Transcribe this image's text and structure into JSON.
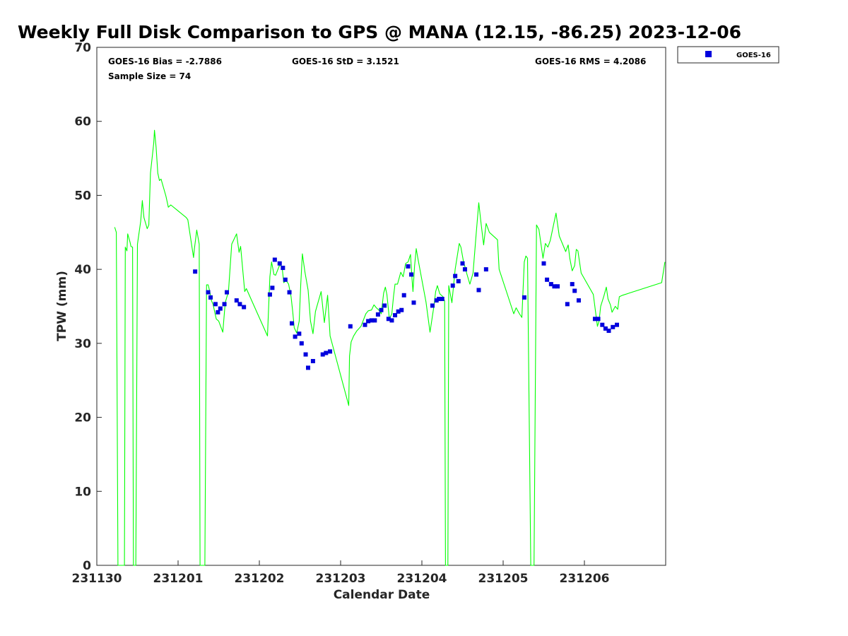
{
  "chart_data": {
    "type": "line+scatter",
    "title": "Weekly Full Disk Comparison to GPS @ MANA (12.15, -86.25) 2023-12-06",
    "xlabel": "Calendar Date",
    "ylabel": "TPW (mm)",
    "xlim": [
      0,
      7
    ],
    "ylim": [
      0,
      70
    ],
    "xticks": [
      {
        "value": 0,
        "label": "231130"
      },
      {
        "value": 1,
        "label": "231201"
      },
      {
        "value": 2,
        "label": "231202"
      },
      {
        "value": 3,
        "label": "231203"
      },
      {
        "value": 4,
        "label": "231204"
      },
      {
        "value": 5,
        "label": "231205"
      },
      {
        "value": 6,
        "label": "231206"
      }
    ],
    "yticks": [
      {
        "value": 0,
        "label": "0"
      },
      {
        "value": 10,
        "label": "10"
      },
      {
        "value": 20,
        "label": "20"
      },
      {
        "value": 30,
        "label": "30"
      },
      {
        "value": 40,
        "label": "40"
      },
      {
        "value": 50,
        "label": "50"
      },
      {
        "value": 60,
        "label": "60"
      },
      {
        "value": 70,
        "label": "70"
      }
    ],
    "stats": {
      "bias": "GOES-16 Bias = -2.7886",
      "std": "GOES-16 StD = 3.1521",
      "rms": "GOES-16 RMS = 4.2086",
      "sample": "Sample Size = 74"
    },
    "legend": {
      "position": "top-right",
      "entries": [
        {
          "name": "GOES-16",
          "color": "#0000dd",
          "marker": "square"
        }
      ]
    },
    "gps_series": {
      "name": "GPS",
      "color": "#00ff00",
      "points": [
        [
          0.22,
          45.7
        ],
        [
          0.24,
          45.0
        ],
        [
          0.26,
          0
        ],
        [
          0.34,
          0
        ],
        [
          0.35,
          43.0
        ],
        [
          0.37,
          42.5
        ],
        [
          0.38,
          44.8
        ],
        [
          0.41,
          43.6
        ],
        [
          0.42,
          43.1
        ],
        [
          0.44,
          43.0
        ],
        [
          0.45,
          0
        ],
        [
          0.48,
          0
        ],
        [
          0.5,
          43.4
        ],
        [
          0.54,
          46.5
        ],
        [
          0.56,
          49.3
        ],
        [
          0.58,
          47.0
        ],
        [
          0.62,
          45.5
        ],
        [
          0.64,
          46.0
        ],
        [
          0.66,
          53.0
        ],
        [
          0.7,
          57.0
        ],
        [
          0.71,
          58.8
        ],
        [
          0.73,
          56.5
        ],
        [
          0.75,
          53.0
        ],
        [
          0.77,
          52.0
        ],
        [
          0.79,
          52.2
        ],
        [
          0.85,
          49.9
        ],
        [
          0.88,
          48.4
        ],
        [
          0.91,
          48.7
        ],
        [
          1.1,
          47.0
        ],
        [
          1.12,
          46.7
        ],
        [
          1.19,
          41.6
        ],
        [
          1.2,
          42.7
        ],
        [
          1.23,
          45.3
        ],
        [
          1.26,
          43.4
        ],
        [
          1.27,
          0
        ],
        [
          1.33,
          0
        ],
        [
          1.35,
          37.9
        ],
        [
          1.37,
          37.9
        ],
        [
          1.39,
          37.0
        ],
        [
          1.41,
          35.8
        ],
        [
          1.43,
          35.3
        ],
        [
          1.47,
          33.3
        ],
        [
          1.5,
          33.0
        ],
        [
          1.55,
          31.5
        ],
        [
          1.58,
          35.5
        ],
        [
          1.62,
          37.0
        ],
        [
          1.66,
          43.4
        ],
        [
          1.72,
          44.8
        ],
        [
          1.75,
          42.3
        ],
        [
          1.77,
          43.1
        ],
        [
          1.82,
          37.0
        ],
        [
          1.84,
          37.4
        ],
        [
          2.1,
          31.0
        ],
        [
          2.13,
          39.0
        ],
        [
          2.15,
          41.0
        ],
        [
          2.18,
          39.3
        ],
        [
          2.2,
          39.2
        ],
        [
          2.25,
          40.6
        ],
        [
          2.28,
          40.3
        ],
        [
          2.3,
          38.2
        ],
        [
          2.33,
          38.5
        ],
        [
          2.36,
          38.0
        ],
        [
          2.39,
          36.3
        ],
        [
          2.41,
          34.3
        ],
        [
          2.43,
          32.1
        ],
        [
          2.46,
          31.4
        ],
        [
          2.49,
          33.0
        ],
        [
          2.51,
          38.0
        ],
        [
          2.53,
          42.1
        ],
        [
          2.56,
          39.7
        ],
        [
          2.6,
          37.2
        ],
        [
          2.63,
          33.0
        ],
        [
          2.66,
          31.3
        ],
        [
          2.69,
          34.3
        ],
        [
          2.76,
          37.0
        ],
        [
          2.8,
          32.8
        ],
        [
          2.84,
          36.5
        ],
        [
          2.87,
          31.0
        ],
        [
          3.1,
          21.6
        ],
        [
          3.11,
          28.3
        ],
        [
          3.13,
          30.2
        ],
        [
          3.16,
          31.0
        ],
        [
          3.2,
          31.7
        ],
        [
          3.25,
          32.3
        ],
        [
          3.31,
          34.0
        ],
        [
          3.34,
          34.4
        ],
        [
          3.38,
          34.5
        ],
        [
          3.41,
          35.2
        ],
        [
          3.44,
          34.8
        ],
        [
          3.47,
          34.5
        ],
        [
          3.5,
          34.0
        ],
        [
          3.53,
          36.8
        ],
        [
          3.55,
          37.6
        ],
        [
          3.57,
          36.6
        ],
        [
          3.6,
          33.3
        ],
        [
          3.63,
          34.0
        ],
        [
          3.65,
          36.3
        ],
        [
          3.67,
          38.0
        ],
        [
          3.7,
          38.0
        ],
        [
          3.74,
          39.6
        ],
        [
          3.77,
          39.0
        ],
        [
          3.8,
          40.8
        ],
        [
          3.83,
          41.0
        ],
        [
          3.86,
          42.0
        ],
        [
          3.88,
          38.5
        ],
        [
          3.89,
          37.0
        ],
        [
          3.91,
          40.5
        ],
        [
          3.93,
          42.8
        ],
        [
          3.95,
          41.5
        ],
        [
          4.05,
          35.6
        ],
        [
          4.1,
          31.5
        ],
        [
          4.15,
          35.2
        ],
        [
          4.17,
          37.0
        ],
        [
          4.19,
          37.8
        ],
        [
          4.22,
          36.7
        ],
        [
          4.26,
          36.3
        ],
        [
          4.28,
          35.7
        ],
        [
          4.29,
          0
        ],
        [
          4.32,
          0
        ],
        [
          4.33,
          37.8
        ],
        [
          4.37,
          35.5
        ],
        [
          4.41,
          40.0
        ],
        [
          4.46,
          43.5
        ],
        [
          4.48,
          43.0
        ],
        [
          4.51,
          41.2
        ],
        [
          4.55,
          39.5
        ],
        [
          4.59,
          38.0
        ],
        [
          4.63,
          39.5
        ],
        [
          4.67,
          45.0
        ],
        [
          4.7,
          49.0
        ],
        [
          4.73,
          46.0
        ],
        [
          4.76,
          43.3
        ],
        [
          4.79,
          46.2
        ],
        [
          4.83,
          45.0
        ],
        [
          4.93,
          44.0
        ],
        [
          4.95,
          40.0
        ],
        [
          5.13,
          34.0
        ],
        [
          5.16,
          34.8
        ],
        [
          5.2,
          34.0
        ],
        [
          5.23,
          33.5
        ],
        [
          5.26,
          41.0
        ],
        [
          5.28,
          41.8
        ],
        [
          5.3,
          41.5
        ],
        [
          5.34,
          0
        ],
        [
          5.38,
          0
        ],
        [
          5.41,
          46.0
        ],
        [
          5.44,
          45.4
        ],
        [
          5.49,
          41.5
        ],
        [
          5.52,
          43.5
        ],
        [
          5.55,
          43.0
        ],
        [
          5.58,
          43.9
        ],
        [
          5.62,
          46.0
        ],
        [
          5.65,
          47.6
        ],
        [
          5.69,
          44.5
        ],
        [
          5.77,
          42.4
        ],
        [
          5.8,
          43.3
        ],
        [
          5.82,
          41.5
        ],
        [
          5.85,
          39.8
        ],
        [
          5.88,
          40.5
        ],
        [
          5.9,
          42.7
        ],
        [
          5.92,
          42.5
        ],
        [
          5.96,
          39.5
        ],
        [
          6.11,
          36.6
        ],
        [
          6.16,
          32.3
        ],
        [
          6.18,
          33.0
        ],
        [
          6.2,
          35.0
        ],
        [
          6.24,
          36.4
        ],
        [
          6.27,
          37.6
        ],
        [
          6.29,
          36.0
        ],
        [
          6.32,
          35.2
        ],
        [
          6.34,
          34.2
        ],
        [
          6.38,
          35.0
        ],
        [
          6.41,
          34.6
        ],
        [
          6.43,
          36.3
        ],
        [
          6.47,
          36.5
        ],
        [
          6.95,
          38.2
        ],
        [
          6.99,
          41.0
        ]
      ]
    },
    "goes16_series": {
      "name": "GOES-16",
      "color": "#0000dd",
      "points": [
        [
          1.21,
          39.7
        ],
        [
          1.37,
          36.9
        ],
        [
          1.4,
          36.2
        ],
        [
          1.46,
          35.3
        ],
        [
          1.49,
          34.2
        ],
        [
          1.52,
          34.7
        ],
        [
          1.57,
          35.3
        ],
        [
          1.6,
          36.9
        ],
        [
          1.72,
          35.8
        ],
        [
          1.76,
          35.3
        ],
        [
          1.81,
          34.9
        ],
        [
          2.13,
          36.6
        ],
        [
          2.16,
          37.5
        ],
        [
          2.19,
          41.3
        ],
        [
          2.25,
          40.8
        ],
        [
          2.29,
          40.2
        ],
        [
          2.32,
          38.6
        ],
        [
          2.37,
          36.9
        ],
        [
          2.4,
          32.7
        ],
        [
          2.44,
          30.9
        ],
        [
          2.49,
          31.3
        ],
        [
          2.52,
          30.0
        ],
        [
          2.57,
          28.5
        ],
        [
          2.6,
          26.7
        ],
        [
          2.66,
          27.6
        ],
        [
          2.78,
          28.5
        ],
        [
          2.82,
          28.7
        ],
        [
          2.87,
          28.9
        ],
        [
          3.12,
          32.3
        ],
        [
          3.3,
          32.5
        ],
        [
          3.34,
          33.0
        ],
        [
          3.38,
          33.1
        ],
        [
          3.42,
          33.1
        ],
        [
          3.46,
          33.9
        ],
        [
          3.5,
          34.5
        ],
        [
          3.54,
          35.1
        ],
        [
          3.59,
          33.3
        ],
        [
          3.63,
          33.1
        ],
        [
          3.67,
          33.8
        ],
        [
          3.71,
          34.3
        ],
        [
          3.75,
          34.5
        ],
        [
          3.78,
          36.5
        ],
        [
          3.83,
          40.4
        ],
        [
          3.87,
          39.3
        ],
        [
          3.9,
          35.5
        ],
        [
          4.13,
          35.1
        ],
        [
          4.18,
          35.8
        ],
        [
          4.21,
          36.0
        ],
        [
          4.25,
          36.0
        ],
        [
          4.38,
          37.8
        ],
        [
          4.41,
          39.1
        ],
        [
          4.45,
          38.4
        ],
        [
          4.5,
          40.8
        ],
        [
          4.53,
          40.0
        ],
        [
          4.67,
          39.3
        ],
        [
          4.7,
          37.2
        ],
        [
          4.79,
          40.0
        ],
        [
          5.26,
          36.2
        ],
        [
          5.5,
          40.8
        ],
        [
          5.54,
          38.6
        ],
        [
          5.59,
          38.0
        ],
        [
          5.63,
          37.7
        ],
        [
          5.67,
          37.7
        ],
        [
          5.79,
          35.3
        ],
        [
          5.85,
          38.0
        ],
        [
          5.88,
          37.1
        ],
        [
          5.93,
          35.8
        ],
        [
          6.13,
          33.3
        ],
        [
          6.17,
          33.3
        ],
        [
          6.22,
          32.5
        ],
        [
          6.26,
          32.0
        ],
        [
          6.3,
          31.7
        ],
        [
          6.35,
          32.2
        ],
        [
          6.4,
          32.5
        ]
      ]
    }
  }
}
